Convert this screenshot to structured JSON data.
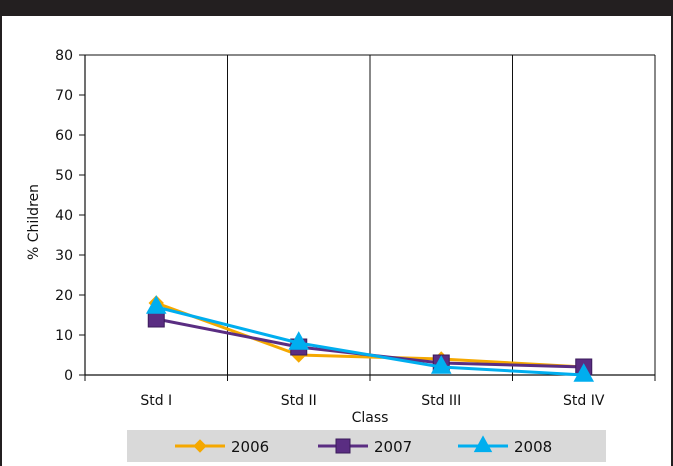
{
  "chart_data": {
    "type": "line",
    "title": "",
    "xlabel": "Class",
    "ylabel": "% Children",
    "categories": [
      "Std I",
      "Std II",
      "Std III",
      "Std IV"
    ],
    "ylim": [
      0,
      80
    ],
    "yticks": [
      0,
      10,
      20,
      30,
      40,
      50,
      60,
      70,
      80
    ],
    "grid": "vertical category gridlines",
    "legend_position": "bottom",
    "series": [
      {
        "name": "2006",
        "values": [
          18,
          5,
          4,
          2
        ],
        "color": "#f5a800",
        "marker": "diamond"
      },
      {
        "name": "2007",
        "values": [
          14,
          7,
          3,
          2
        ],
        "color": "#5a2d82",
        "marker": "square"
      },
      {
        "name": "2008",
        "values": [
          17,
          8,
          2,
          0
        ],
        "color": "#00aeef",
        "marker": "triangle"
      }
    ]
  },
  "colors": {
    "frame": "#231f20",
    "legend_background": "#d9d9d9"
  }
}
